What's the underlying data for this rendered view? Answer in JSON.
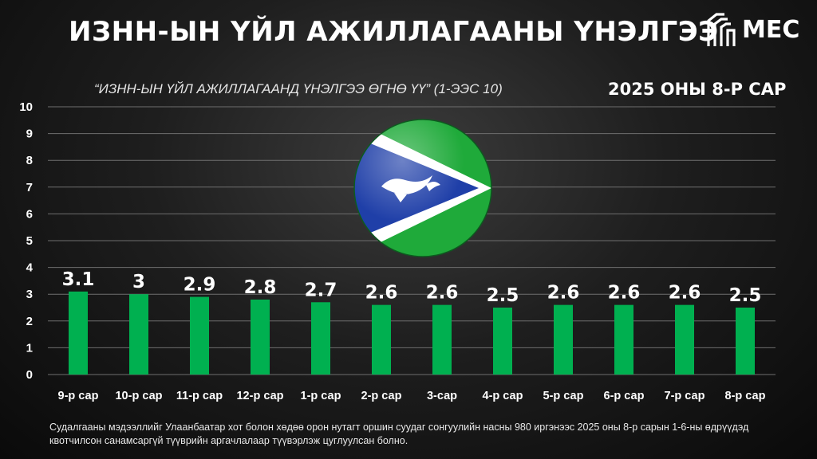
{
  "header": {
    "title": "ИЗНН-ЫН ҮЙЛ АЖИЛЛАГААНЫ ҮНЭЛГЭЭ",
    "logo_text": "MEC",
    "subtitle": "“ИЗНН-ЫН ҮЙЛ АЖИЛЛАГААНД ҮНЭЛГЭЭ ӨГНӨ ҮҮ” (1-ЭЭС 10)",
    "period": "2025 ОНЫ 8-Р САР"
  },
  "footer": {
    "note": "Судалгааны мэдээллийг Улаанбаатар хот болон хөдөө орон нутагт оршин суудаг сонгуулийн насны 980 иргэнээс 2025 оны 8-р сарын 1-6-ны өдрүүдэд квотчилсон санамсаргүй түүврийн аргачлалаар түүвэрлэж цуглуулсан болно."
  },
  "colors": {
    "bar": "#00b050",
    "grid": "#6e6e6e",
    "emblem_blue": "#1f3fa8",
    "emblem_green": "#1faa3a"
  },
  "icons": {
    "logo": "mec-logo-icon",
    "emblem": "party-emblem-icon"
  },
  "chart_data": {
    "type": "bar",
    "categories": [
      "9-р сар",
      "10-р сар",
      "11-р сар",
      "12-р сар",
      "1-р сар",
      "2-р сар",
      "3-сар",
      "4-р сар",
      "5-р сар",
      "6-р сар",
      "7-р сар",
      "8-р сар"
    ],
    "values": [
      3.1,
      3,
      2.9,
      2.8,
      2.7,
      2.6,
      2.6,
      2.5,
      2.6,
      2.6,
      2.6,
      2.5
    ],
    "value_labels": [
      "3.1",
      "3",
      "2.9",
      "2.8",
      "2.7",
      "2.6",
      "2.6",
      "2.5",
      "2.6",
      "2.6",
      "2.6",
      "2.5"
    ],
    "ylim": [
      0,
      10
    ],
    "yticks": [
      "0",
      "1",
      "2",
      "3",
      "4",
      "5",
      "6",
      "7",
      "8",
      "9",
      "10"
    ],
    "grid": true,
    "legend": "none"
  }
}
